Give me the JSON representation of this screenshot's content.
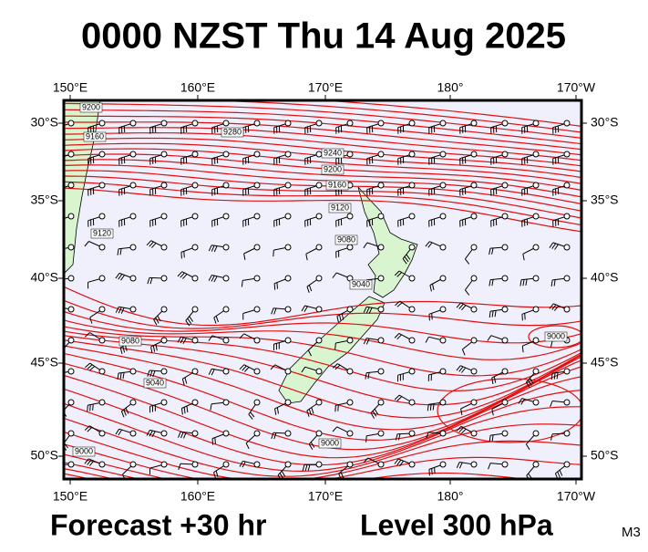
{
  "title": "0000 NZST Thu 14 Aug 2025",
  "map": {
    "lon_labels": [
      "150°E",
      "160°E",
      "170°E",
      "180°",
      "170°W"
    ],
    "lat_labels": [
      "30°S",
      "35°S",
      "40°S",
      "45°S",
      "50°S"
    ],
    "contour_labels": [
      "9200",
      "9160",
      "9280",
      "9240",
      "9200",
      "9160",
      "9120",
      "9080",
      "9040",
      "9120",
      "9080",
      "9040",
      "9000",
      "9000",
      "9000"
    ]
  },
  "footer": {
    "forecast": "Forecast +30 hr",
    "level": "Level 300 hPa",
    "code": "M3"
  }
}
